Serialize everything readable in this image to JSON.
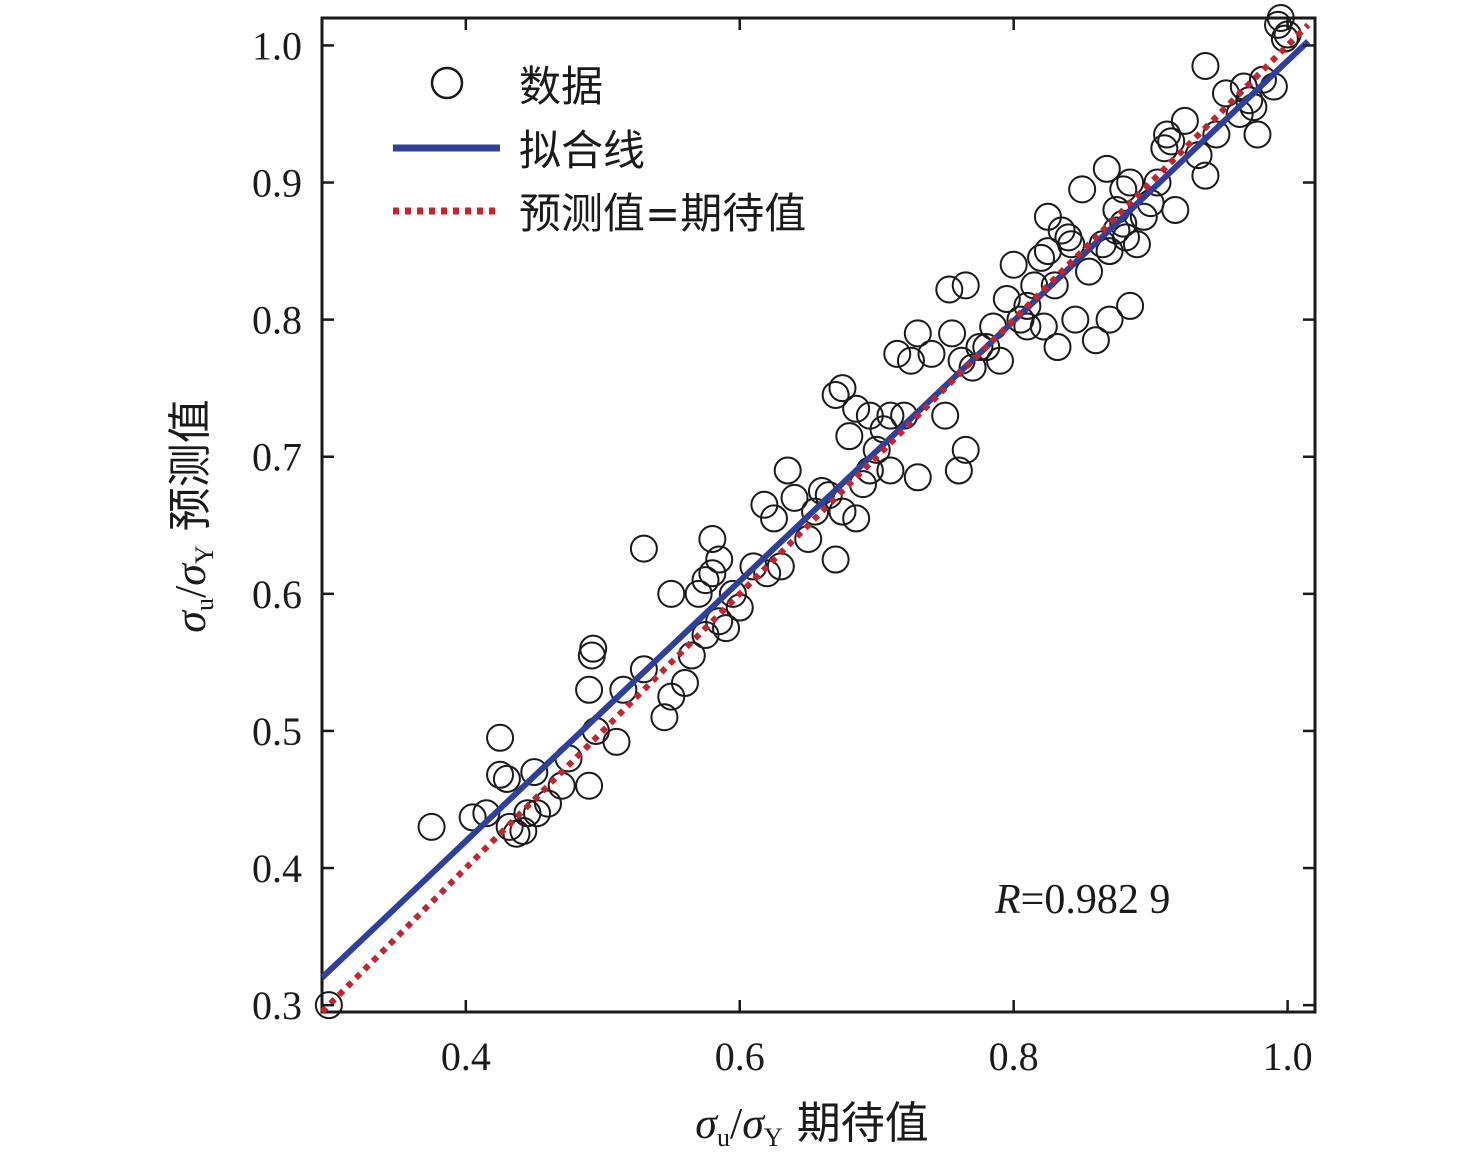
{
  "chart_data": {
    "type": "scatter",
    "xlabel": "σu/σY 期待值",
    "ylabel": "σu/σY 预测值",
    "xlim": [
      0.295,
      1.02
    ],
    "ylim": [
      0.295,
      1.02
    ],
    "xticks": [
      0.4,
      0.6,
      0.8,
      1.0
    ],
    "yticks": [
      0.3,
      0.4,
      0.5,
      0.6,
      0.7,
      0.8,
      0.9,
      1.0
    ],
    "xtick_labels": [
      "0.4",
      "0.6",
      "0.8",
      "1.0"
    ],
    "ytick_labels": [
      "0.3",
      "0.4",
      "0.5",
      "0.6",
      "0.7",
      "0.8",
      "0.9",
      "1.0"
    ],
    "grid": false,
    "legend_position": "top-left",
    "annotation": {
      "italic": "R",
      "text": "=0.982 9"
    },
    "series": [
      {
        "name": "数据",
        "kind": "scatter",
        "marker": "open-circle",
        "color": "#1a1a1a",
        "points": [
          [
            0.3,
            0.3
          ],
          [
            0.375,
            0.43
          ],
          [
            0.405,
            0.437
          ],
          [
            0.415,
            0.44
          ],
          [
            0.425,
            0.495
          ],
          [
            0.425,
            0.468
          ],
          [
            0.43,
            0.465
          ],
          [
            0.432,
            0.43
          ],
          [
            0.437,
            0.425
          ],
          [
            0.442,
            0.427
          ],
          [
            0.445,
            0.44
          ],
          [
            0.45,
            0.47
          ],
          [
            0.452,
            0.44
          ],
          [
            0.46,
            0.447
          ],
          [
            0.47,
            0.46
          ],
          [
            0.475,
            0.48
          ],
          [
            0.49,
            0.46
          ],
          [
            0.49,
            0.53
          ],
          [
            0.492,
            0.555
          ],
          [
            0.493,
            0.56
          ],
          [
            0.495,
            0.5
          ],
          [
            0.51,
            0.492
          ],
          [
            0.515,
            0.53
          ],
          [
            0.53,
            0.545
          ],
          [
            0.53,
            0.633
          ],
          [
            0.545,
            0.51
          ],
          [
            0.55,
            0.525
          ],
          [
            0.55,
            0.6
          ],
          [
            0.56,
            0.535
          ],
          [
            0.565,
            0.555
          ],
          [
            0.57,
            0.6
          ],
          [
            0.575,
            0.57
          ],
          [
            0.575,
            0.61
          ],
          [
            0.58,
            0.64
          ],
          [
            0.58,
            0.615
          ],
          [
            0.585,
            0.58
          ],
          [
            0.585,
            0.625
          ],
          [
            0.59,
            0.575
          ],
          [
            0.595,
            0.6
          ],
          [
            0.6,
            0.59
          ],
          [
            0.61,
            0.62
          ],
          [
            0.618,
            0.665
          ],
          [
            0.62,
            0.615
          ],
          [
            0.625,
            0.655
          ],
          [
            0.63,
            0.62
          ],
          [
            0.635,
            0.69
          ],
          [
            0.64,
            0.67
          ],
          [
            0.65,
            0.64
          ],
          [
            0.655,
            0.66
          ],
          [
            0.66,
            0.675
          ],
          [
            0.665,
            0.672
          ],
          [
            0.67,
            0.625
          ],
          [
            0.67,
            0.745
          ],
          [
            0.675,
            0.75
          ],
          [
            0.675,
            0.66
          ],
          [
            0.68,
            0.715
          ],
          [
            0.685,
            0.655
          ],
          [
            0.685,
            0.735
          ],
          [
            0.69,
            0.68
          ],
          [
            0.695,
            0.73
          ],
          [
            0.695,
            0.69
          ],
          [
            0.7,
            0.705
          ],
          [
            0.705,
            0.72
          ],
          [
            0.71,
            0.69
          ],
          [
            0.71,
            0.73
          ],
          [
            0.715,
            0.775
          ],
          [
            0.72,
            0.73
          ],
          [
            0.725,
            0.77
          ],
          [
            0.73,
            0.79
          ],
          [
            0.73,
            0.685
          ],
          [
            0.74,
            0.775
          ],
          [
            0.75,
            0.73
          ],
          [
            0.753,
            0.822
          ],
          [
            0.755,
            0.79
          ],
          [
            0.76,
            0.69
          ],
          [
            0.762,
            0.77
          ],
          [
            0.765,
            0.825
          ],
          [
            0.765,
            0.705
          ],
          [
            0.77,
            0.765
          ],
          [
            0.775,
            0.78
          ],
          [
            0.78,
            0.78
          ],
          [
            0.785,
            0.795
          ],
          [
            0.79,
            0.77
          ],
          [
            0.795,
            0.815
          ],
          [
            0.8,
            0.84
          ],
          [
            0.805,
            0.8
          ],
          [
            0.81,
            0.81
          ],
          [
            0.81,
            0.795
          ],
          [
            0.815,
            0.825
          ],
          [
            0.82,
            0.845
          ],
          [
            0.822,
            0.795
          ],
          [
            0.825,
            0.85
          ],
          [
            0.825,
            0.875
          ],
          [
            0.83,
            0.825
          ],
          [
            0.832,
            0.78
          ],
          [
            0.835,
            0.865
          ],
          [
            0.84,
            0.86
          ],
          [
            0.842,
            0.855
          ],
          [
            0.845,
            0.8
          ],
          [
            0.85,
            0.895
          ],
          [
            0.855,
            0.835
          ],
          [
            0.86,
            0.785
          ],
          [
            0.865,
            0.855
          ],
          [
            0.868,
            0.91
          ],
          [
            0.87,
            0.85
          ],
          [
            0.87,
            0.8
          ],
          [
            0.875,
            0.88
          ],
          [
            0.875,
            0.865
          ],
          [
            0.88,
            0.87
          ],
          [
            0.88,
            0.895
          ],
          [
            0.882,
            0.86
          ],
          [
            0.885,
            0.9
          ],
          [
            0.885,
            0.81
          ],
          [
            0.89,
            0.855
          ],
          [
            0.895,
            0.875
          ],
          [
            0.9,
            0.885
          ],
          [
            0.905,
            0.9
          ],
          [
            0.91,
            0.925
          ],
          [
            0.912,
            0.935
          ],
          [
            0.915,
            0.93
          ],
          [
            0.918,
            0.88
          ],
          [
            0.925,
            0.945
          ],
          [
            0.935,
            0.92
          ],
          [
            0.94,
            0.905
          ],
          [
            0.94,
            0.985
          ],
          [
            0.948,
            0.935
          ],
          [
            0.955,
            0.965
          ],
          [
            0.965,
            0.95
          ],
          [
            0.968,
            0.97
          ],
          [
            0.972,
            0.96
          ],
          [
            0.975,
            0.955
          ],
          [
            0.978,
            0.935
          ],
          [
            0.982,
            0.975
          ],
          [
            0.99,
            0.97
          ],
          [
            0.993,
            1.015
          ],
          [
            0.995,
            1.02
          ],
          [
            0.998,
            1.005
          ],
          [
            1.0,
            1.008
          ]
        ]
      },
      {
        "name": "拟合线",
        "kind": "line",
        "style": "solid",
        "color": "#2e3f9c",
        "x": [
          0.295,
          1.015
        ],
        "y": [
          0.32,
          1.003
        ]
      },
      {
        "name": "预测值=期待值",
        "kind": "line",
        "style": "dotted",
        "color": "#c0262f",
        "x": [
          0.295,
          1.015
        ],
        "y": [
          0.295,
          1.015
        ]
      }
    ]
  }
}
